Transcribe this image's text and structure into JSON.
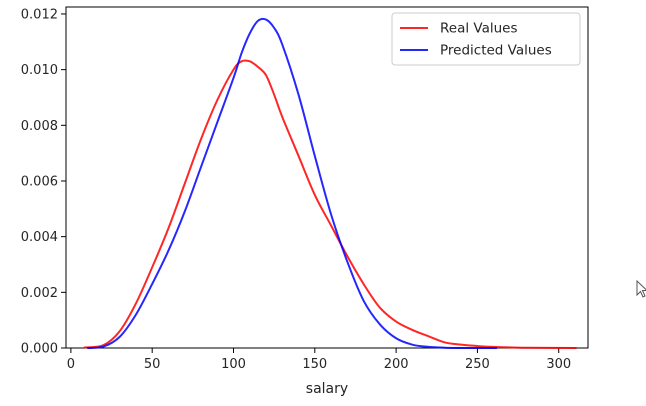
{
  "chart_data": {
    "type": "line",
    "title": "",
    "xlabel": "salary",
    "ylabel": "",
    "xlim": [
      -3,
      318
    ],
    "ylim": [
      0,
      0.01225
    ],
    "x_ticks": [
      0,
      50,
      100,
      150,
      200,
      250,
      300
    ],
    "x_tick_labels": [
      "0",
      "50",
      "100",
      "150",
      "200",
      "250",
      "300"
    ],
    "y_ticks": [
      0,
      0.002,
      0.004,
      0.006,
      0.008,
      0.01,
      0.012
    ],
    "y_tick_labels": [
      "0.000",
      "0.002",
      "0.004",
      "0.006",
      "0.008",
      "0.010",
      "0.012"
    ],
    "grid": false,
    "legend_position": "top-right",
    "series": [
      {
        "name": "Real Values",
        "color": "#ff0000",
        "x": [
          8,
          20,
          30,
          40,
          50,
          60,
          70,
          80,
          90,
          100,
          105,
          110,
          115,
          120,
          125,
          130,
          140,
          150,
          160,
          170,
          180,
          190,
          200,
          210,
          220,
          230,
          240,
          250,
          260,
          280,
          311
        ],
        "y": [
          2e-05,
          0.0001,
          0.0006,
          0.0016,
          0.0029,
          0.0043,
          0.0059,
          0.0075,
          0.0089,
          0.01,
          0.0103,
          0.0103,
          0.0101,
          0.0098,
          0.0091,
          0.0083,
          0.0069,
          0.0055,
          0.0044,
          0.0033,
          0.0023,
          0.00145,
          0.00095,
          0.00065,
          0.00042,
          0.0002,
          0.00012,
          7e-05,
          4e-05,
          1e-05,
          0.0
        ]
      },
      {
        "name": "Predicted Values",
        "color": "#0000ff",
        "x": [
          10,
          20,
          30,
          40,
          50,
          60,
          70,
          80,
          90,
          100,
          105,
          110,
          115,
          120,
          125,
          130,
          140,
          150,
          160,
          170,
          180,
          190,
          200,
          210,
          220,
          230,
          240,
          250,
          262
        ],
        "y": [
          0.0,
          5e-05,
          0.0004,
          0.0012,
          0.0023,
          0.0035,
          0.0049,
          0.0065,
          0.0081,
          0.0097,
          0.0106,
          0.0113,
          0.01175,
          0.0118,
          0.0115,
          0.0109,
          0.0091,
          0.0069,
          0.0048,
          0.0031,
          0.0017,
          0.00085,
          0.00035,
          0.00012,
          4e-05,
          1e-05,
          0.0,
          0.0,
          0.0
        ]
      }
    ]
  }
}
